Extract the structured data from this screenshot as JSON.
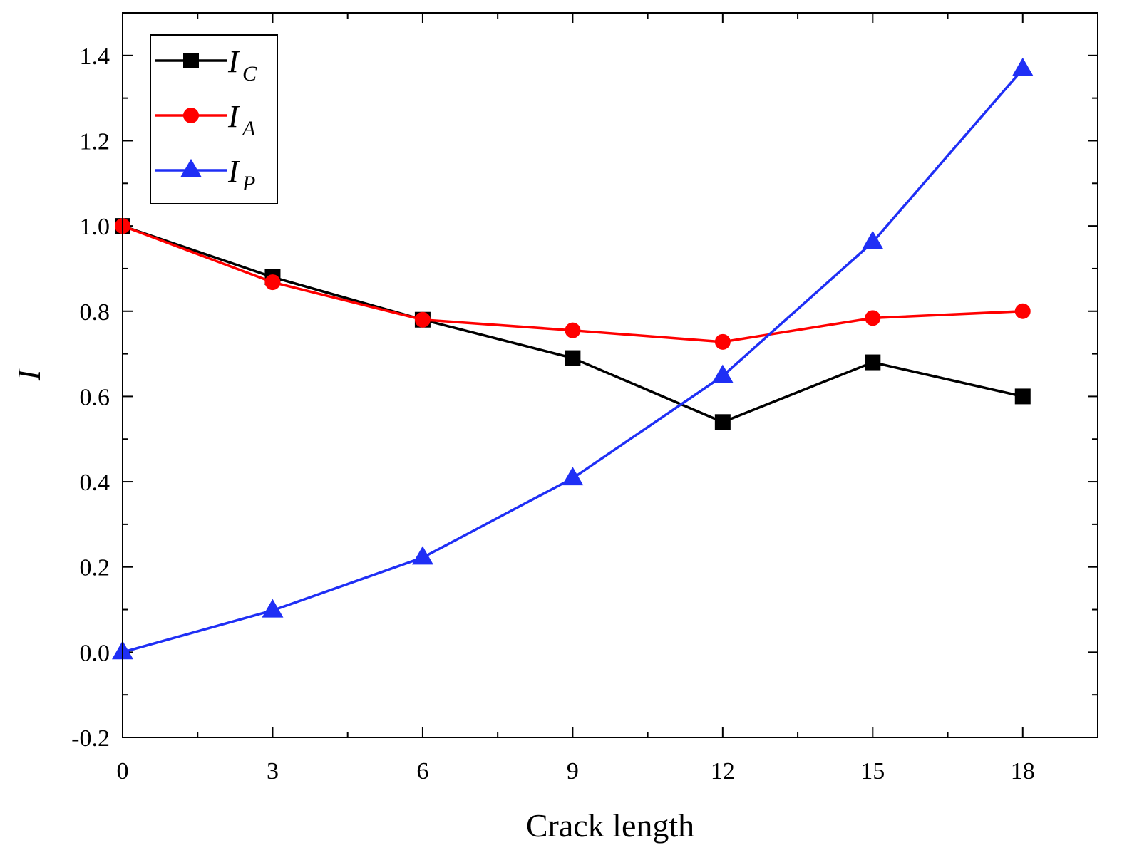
{
  "chart_data": {
    "type": "line",
    "title": "",
    "xlabel": "Crack length",
    "ylabel": "I",
    "xlim": [
      0,
      19.5
    ],
    "ylim": [
      -0.2,
      1.5
    ],
    "xticks": [
      0,
      3,
      6,
      9,
      12,
      15,
      18
    ],
    "xtick_labels": [
      "0",
      "3",
      "6",
      "9",
      "12",
      "15",
      "18"
    ],
    "yticks": [
      -0.2,
      0.0,
      0.2,
      0.4,
      0.6,
      0.8,
      1.0,
      1.2,
      1.4
    ],
    "ytick_labels": [
      "-0.2",
      "0.0",
      "0.2",
      "0.4",
      "0.6",
      "0.8",
      "1.0",
      "1.2",
      "1.4"
    ],
    "x": [
      0,
      3,
      6,
      9,
      12,
      15,
      18
    ],
    "legend_position": "top-left",
    "grid": false,
    "series": [
      {
        "name": "I_C",
        "base": "I",
        "sub": "C",
        "color": "#000000",
        "marker": "square",
        "values": [
          1.0,
          0.88,
          0.78,
          0.69,
          0.54,
          0.68,
          0.6
        ]
      },
      {
        "name": "I_A",
        "base": "I",
        "sub": "A",
        "color": "#ff0000",
        "marker": "circle",
        "values": [
          1.0,
          0.868,
          0.78,
          0.755,
          0.728,
          0.784,
          0.8
        ]
      },
      {
        "name": "I_P",
        "base": "I",
        "sub": "P",
        "color": "#1f2ff5",
        "marker": "triangle",
        "values": [
          0.0,
          0.098,
          0.222,
          0.408,
          0.648,
          0.962,
          1.368
        ]
      }
    ]
  }
}
